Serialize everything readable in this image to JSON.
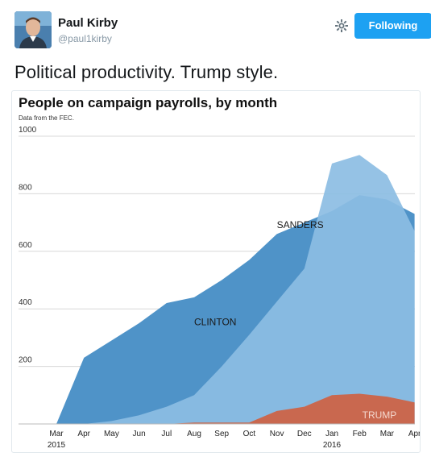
{
  "tweet": {
    "author_name": "Paul Kirby",
    "author_handle": "@paul1kirby",
    "follow_label": "Following",
    "text": "Political productivity. Trump style."
  },
  "icons": {
    "settings": "gear-icon",
    "avatar": "profile-photo"
  },
  "colors": {
    "follow_button": "#1da1f2",
    "clinton": "#4f93c8",
    "sanders": "#8cbde3",
    "trump": "#c9684f"
  },
  "chart_data": {
    "type": "area",
    "title": "People on campaign payrolls, by month",
    "subtitle": "Data from the FEC.",
    "xlabel": "",
    "ylabel": "",
    "categories": [
      "Mar",
      "Apr",
      "May",
      "Jun",
      "Jul",
      "Aug",
      "Sep",
      "Oct",
      "Nov",
      "Dec",
      "Jan",
      "Feb",
      "Mar",
      "Apr"
    ],
    "year_labels": [
      {
        "index": 0,
        "text": "2015"
      },
      {
        "index": 10,
        "text": "2016"
      }
    ],
    "yticks": [
      200,
      400,
      600,
      800,
      1000
    ],
    "ylim": [
      0,
      1000
    ],
    "grid": true,
    "series": [
      {
        "name": "CLINTON",
        "values": [
          0,
          230,
          290,
          350,
          420,
          440,
          500,
          570,
          660,
          700,
          740,
          795,
          780,
          730
        ]
      },
      {
        "name": "SANDERS",
        "values": [
          0,
          0,
          10,
          30,
          60,
          100,
          200,
          310,
          425,
          540,
          905,
          935,
          865,
          670
        ]
      },
      {
        "name": "TRUMP",
        "values": [
          0,
          0,
          0,
          0,
          0,
          5,
          5,
          5,
          45,
          60,
          100,
          105,
          95,
          75
        ]
      }
    ],
    "annotations": [
      {
        "text": "CLINTON",
        "series": "CLINTON"
      },
      {
        "text": "SANDERS",
        "series": "SANDERS"
      },
      {
        "text": "TRUMP",
        "series": "TRUMP"
      }
    ]
  }
}
